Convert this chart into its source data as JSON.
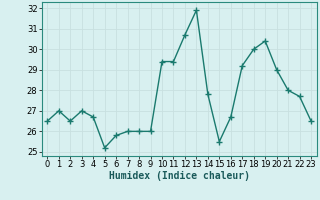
{
  "x": [
    0,
    1,
    2,
    3,
    4,
    5,
    6,
    7,
    8,
    9,
    10,
    11,
    12,
    13,
    14,
    15,
    16,
    17,
    18,
    19,
    20,
    21,
    22,
    23
  ],
  "y": [
    26.5,
    27.0,
    26.5,
    27.0,
    26.7,
    25.2,
    25.8,
    26.0,
    26.0,
    26.0,
    29.4,
    29.4,
    30.7,
    31.9,
    27.8,
    25.5,
    26.7,
    29.2,
    30.0,
    30.4,
    29.0,
    28.0,
    27.7,
    26.5
  ],
  "line_color": "#1a7a6e",
  "marker": "+",
  "marker_size": 4,
  "bg_color": "#d8f0f0",
  "grid_color": "#c8e0e0",
  "xlabel": "Humidex (Indice chaleur)",
  "xlim": [
    -0.5,
    23.5
  ],
  "ylim": [
    24.8,
    32.3
  ],
  "yticks": [
    25,
    26,
    27,
    28,
    29,
    30,
    31,
    32
  ],
  "xticks": [
    0,
    1,
    2,
    3,
    4,
    5,
    6,
    7,
    8,
    9,
    10,
    11,
    12,
    13,
    14,
    15,
    16,
    17,
    18,
    19,
    20,
    21,
    22,
    23
  ],
  "xlabel_fontsize": 7,
  "tick_fontsize": 6,
  "line_width": 1.0,
  "spine_color": "#2a8a7e"
}
